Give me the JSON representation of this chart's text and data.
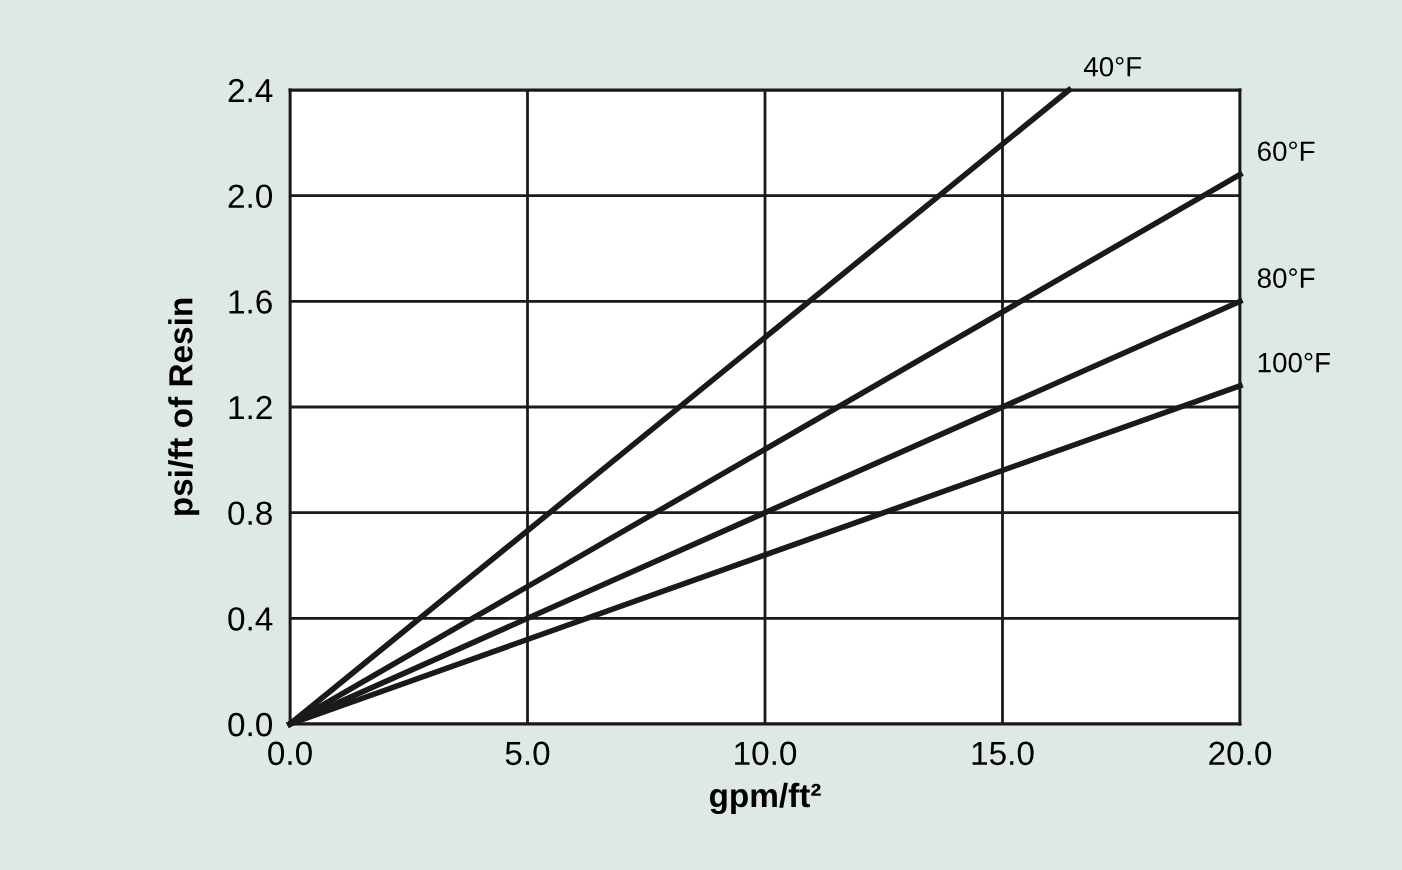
{
  "chart_data": {
    "type": "line",
    "xlabel": "gpm/ft²",
    "ylabel": "psi/ft of Resin",
    "series": [
      {
        "name": "40°F",
        "color": "#1a1a1a",
        "x": [
          0,
          16.4
        ],
        "values": [
          0,
          2.4
        ]
      },
      {
        "name": "60°F",
        "color": "#1a1a1a",
        "x": [
          0,
          20
        ],
        "values": [
          0,
          2.08
        ]
      },
      {
        "name": "80°F",
        "color": "#1a1a1a",
        "x": [
          0,
          20
        ],
        "values": [
          0,
          1.6
        ]
      },
      {
        "name": "100°F",
        "color": "#1a1a1a",
        "x": [
          0,
          20
        ],
        "values": [
          0,
          1.28
        ]
      }
    ],
    "xlim": [
      0,
      20
    ],
    "xticks": [
      {
        "value": 0,
        "label": "0.0"
      },
      {
        "value": 5,
        "label": "5.0"
      },
      {
        "value": 10,
        "label": "10.0"
      },
      {
        "value": 15,
        "label": "15.0"
      },
      {
        "value": 20,
        "label": "20.0"
      }
    ],
    "ylim": [
      0,
      2.4
    ],
    "yticks": [
      {
        "value": 0,
        "label": "0.0"
      },
      {
        "value": 0.4,
        "label": "0.4"
      },
      {
        "value": 0.8,
        "label": "0.8"
      },
      {
        "value": 1.2,
        "label": "1.2"
      },
      {
        "value": 1.6,
        "label": "1.6"
      },
      {
        "value": 2.0,
        "label": "2.0"
      },
      {
        "value": 2.4,
        "label": "2.4"
      }
    ],
    "grid": true,
    "legend": false,
    "marker": "none",
    "line_style": "solid"
  }
}
